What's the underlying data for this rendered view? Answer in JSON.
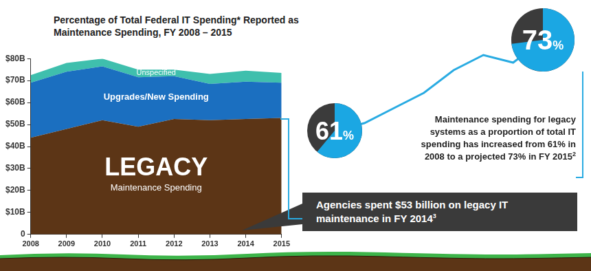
{
  "chart_data": [
    {
      "type": "area",
      "title": "Percentage of Total Federal IT Spending* Reported as Maintenance Spending, FY 2008 – 2015",
      "categories": [
        "2008",
        "2009",
        "2010",
        "2011",
        "2012",
        "2013",
        "2014",
        "2015"
      ],
      "stacked": true,
      "grid": false,
      "ylim": [
        0,
        80
      ],
      "yticks": [
        0,
        {
          "value": 10,
          "label": "$10B"
        },
        {
          "value": 20,
          "label": "$20B"
        },
        {
          "value": 30,
          "label": "$30B"
        },
        {
          "value": 40,
          "label": "$40B"
        },
        {
          "value": 50,
          "label": "$50B"
        },
        {
          "value": 60,
          "label": "$60B"
        },
        {
          "value": 70,
          "label": "$70B"
        },
        {
          "value": 80,
          "label": "$80B"
        }
      ],
      "series": [
        {
          "name": "LEGACY",
          "subtitle": "Maintenance Spending",
          "color": "#5c3516",
          "values": [
            44,
            48,
            52,
            49,
            52.5,
            52,
            52.5,
            53
          ]
        },
        {
          "name": "Upgrades/New Spending",
          "color": "#1b6fc0",
          "values": [
            25,
            26,
            24.5,
            22.5,
            19.5,
            16.5,
            17,
            16
          ]
        },
        {
          "name": "Unspecified",
          "color": "#3fbfad",
          "values": [
            3.5,
            4,
            3.5,
            3.5,
            3,
            4.5,
            5,
            4.5
          ]
        }
      ],
      "annotation": {
        "text": "Agencies spent $53 billion on legacy IT maintenance in FY 2014",
        "footnote": "3"
      }
    },
    {
      "type": "line",
      "x": [
        2008,
        2009,
        2010,
        2011,
        2012,
        2013,
        2014,
        2015
      ],
      "xlim": [
        2008,
        2015
      ],
      "ylim": [
        60,
        74
      ],
      "tick_labels": false,
      "grid": false,
      "data_labels": true,
      "color": "#29abe2",
      "marker": "donut",
      "values": [
        61,
        62,
        64,
        66,
        69,
        71,
        70,
        73
      ],
      "value_labels": [
        "61%",
        null,
        null,
        null,
        null,
        null,
        null,
        "73%"
      ],
      "annotation": {
        "text": "Maintenance spending for legacy systems as a proportion of total IT spending has increased from 61% in 2008 to a projected 73% in FY 2015",
        "footnote": "2"
      }
    }
  ]
}
